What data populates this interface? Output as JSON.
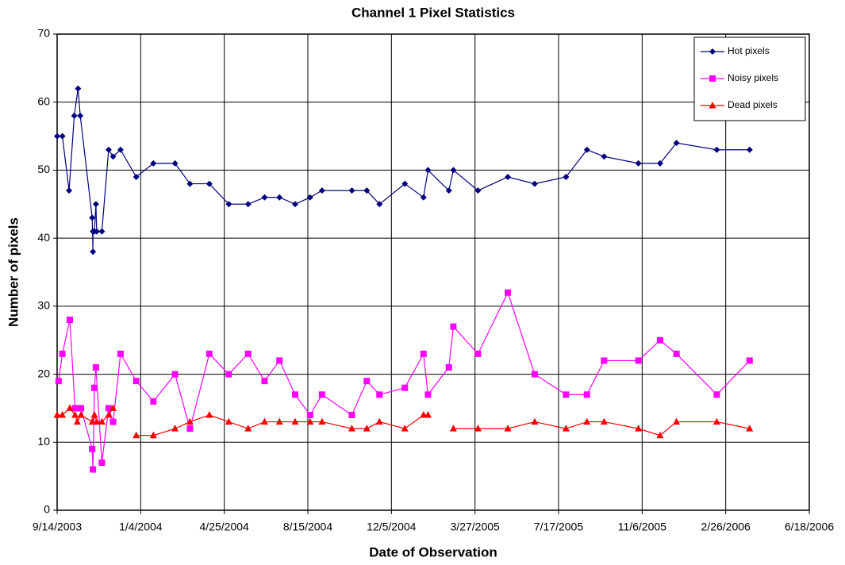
{
  "chart_data": {
    "type": "line",
    "title": "Channel 1 Pixel Statistics",
    "x_label": "Date of Observation",
    "y_label": "Number of pixels",
    "xlim": [
      "2003-09-14",
      "2006-06-18"
    ],
    "xticks": [
      {
        "value": "2003-09-14",
        "label": "9/14/2003"
      },
      {
        "value": "2004-01-04",
        "label": "1/4/2004"
      },
      {
        "value": "2004-04-25",
        "label": "4/25/2004"
      },
      {
        "value": "2004-08-15",
        "label": "8/15/2004"
      },
      {
        "value": "2004-12-05",
        "label": "12/5/2004"
      },
      {
        "value": "2005-03-27",
        "label": "3/27/2005"
      },
      {
        "value": "2005-07-17",
        "label": "7/17/2005"
      },
      {
        "value": "2005-11-06",
        "label": "11/6/2005"
      },
      {
        "value": "2006-02-26",
        "label": "2/26/2006"
      },
      {
        "value": "2006-06-18",
        "label": "6/18/2006"
      }
    ],
    "ylim": [
      0,
      70
    ],
    "yticks": [
      0,
      10,
      20,
      30,
      40,
      50,
      60,
      70
    ],
    "grid": true,
    "legend": "top-right",
    "series": [
      {
        "name": "Hot pixels",
        "color": "#000080",
        "marker": "diamond",
        "x": [
          "2003-09-14",
          "2003-09-21",
          "2003-09-30",
          "2003-10-07",
          "2003-10-12",
          "2003-10-15",
          "2003-10-31",
          "2003-11-01",
          "2003-11-01",
          "2003-11-03",
          "2003-11-05",
          "2003-11-06",
          "2003-11-13",
          "2003-11-22",
          "2003-11-28",
          "2003-12-08",
          "2003-12-29",
          "2004-01-21",
          "2004-02-19",
          "2004-03-10",
          "2004-04-05",
          "2004-05-01",
          "2004-05-27",
          "2004-06-18",
          "2004-07-08",
          "2004-07-29",
          "2004-08-18",
          "2004-09-03",
          "2004-10-13",
          "2004-11-02",
          "2004-11-19",
          "2004-12-23",
          "2005-01-17",
          "2005-01-23",
          "2005-02-20",
          "2005-02-26",
          "2005-03-31",
          "2005-05-10",
          "2005-06-15",
          "2005-07-27",
          "2005-08-24",
          "2005-09-16",
          "2005-11-01",
          "2005-11-30",
          "2005-12-22",
          "2006-02-14",
          "2006-03-30"
        ],
        "values": [
          55,
          55,
          47,
          58,
          62,
          58,
          43,
          38,
          41,
          41,
          45,
          41,
          41,
          53,
          52,
          53,
          49,
          51,
          51,
          48,
          48,
          45,
          45,
          46,
          46,
          45,
          46,
          47,
          47,
          47,
          45,
          48,
          46,
          50,
          47,
          50,
          47,
          49,
          48,
          49,
          53,
          52,
          51,
          51,
          54,
          53,
          53
        ]
      },
      {
        "name": "Noisy pixels",
        "color": "#ff00ff",
        "marker": "square",
        "x": [
          "2003-09-16",
          "2003-09-21",
          "2003-10-01",
          "2003-10-08",
          "2003-10-11",
          "2003-10-16",
          "2003-10-31",
          "2003-11-01",
          "2003-11-03",
          "2003-11-05",
          "2003-11-13",
          "2003-11-22",
          "2003-11-28",
          "2003-12-08",
          "2003-12-29",
          "2004-01-21",
          "2004-02-19",
          "2004-03-10",
          "2004-04-05",
          "2004-05-01",
          "2004-05-27",
          "2004-06-18",
          "2004-07-08",
          "2004-07-29",
          "2004-08-18",
          "2004-09-03",
          "2004-10-13",
          "2004-11-02",
          "2004-11-19",
          "2004-12-23",
          "2005-01-17",
          "2005-01-23",
          "2005-02-20",
          "2005-02-26",
          "2005-03-31",
          "2005-05-10",
          "2005-06-15",
          "2005-07-27",
          "2005-08-24",
          "2005-09-16",
          "2005-11-01",
          "2005-11-30",
          "2005-12-22",
          "2006-02-14",
          "2006-03-30"
        ],
        "values": [
          19,
          23,
          28,
          15,
          15,
          15,
          9,
          6,
          18,
          21,
          7,
          15,
          13,
          23,
          19,
          16,
          20,
          12,
          23,
          20,
          23,
          19,
          22,
          17,
          14,
          17,
          14,
          19,
          17,
          18,
          23,
          17,
          21,
          27,
          23,
          32,
          20,
          17,
          17,
          22,
          22,
          25,
          23,
          17,
          22
        ]
      },
      {
        "name": "Dead pixels",
        "color": "#ff0000",
        "marker": "triangle",
        "x": [
          "2003-09-14",
          "2003-09-21",
          "2003-10-01",
          "2003-10-08",
          "2003-10-11",
          "2003-10-16",
          "2003-10-31",
          "2003-11-03",
          "2003-11-06",
          "2003-11-13",
          "2003-11-22",
          "2003-11-28",
          null,
          "2003-12-29",
          "2004-01-21",
          "2004-02-19",
          "2004-03-10",
          "2004-04-05",
          "2004-05-01",
          "2004-05-27",
          "2004-06-18",
          "2004-07-08",
          "2004-07-29",
          "2004-08-18",
          "2004-09-03",
          "2004-10-13",
          "2004-11-02",
          "2004-11-19",
          "2004-12-23",
          "2005-01-17",
          "2005-01-23",
          null,
          "2005-02-26",
          "2005-03-31",
          "2005-05-10",
          "2005-06-15",
          "2005-07-27",
          "2005-08-24",
          "2005-09-16",
          "2005-11-01",
          "2005-11-30",
          "2005-12-22",
          "2006-02-14",
          "2006-03-30"
        ],
        "values": [
          14,
          14,
          15,
          14,
          13,
          14,
          13,
          14,
          13,
          13,
          14,
          15,
          null,
          11,
          11,
          12,
          13,
          14,
          13,
          12,
          13,
          13,
          13,
          13,
          13,
          12,
          12,
          13,
          12,
          14,
          14,
          null,
          12,
          12,
          12,
          13,
          12,
          13,
          13,
          12,
          11,
          13,
          13,
          12
        ]
      }
    ]
  }
}
